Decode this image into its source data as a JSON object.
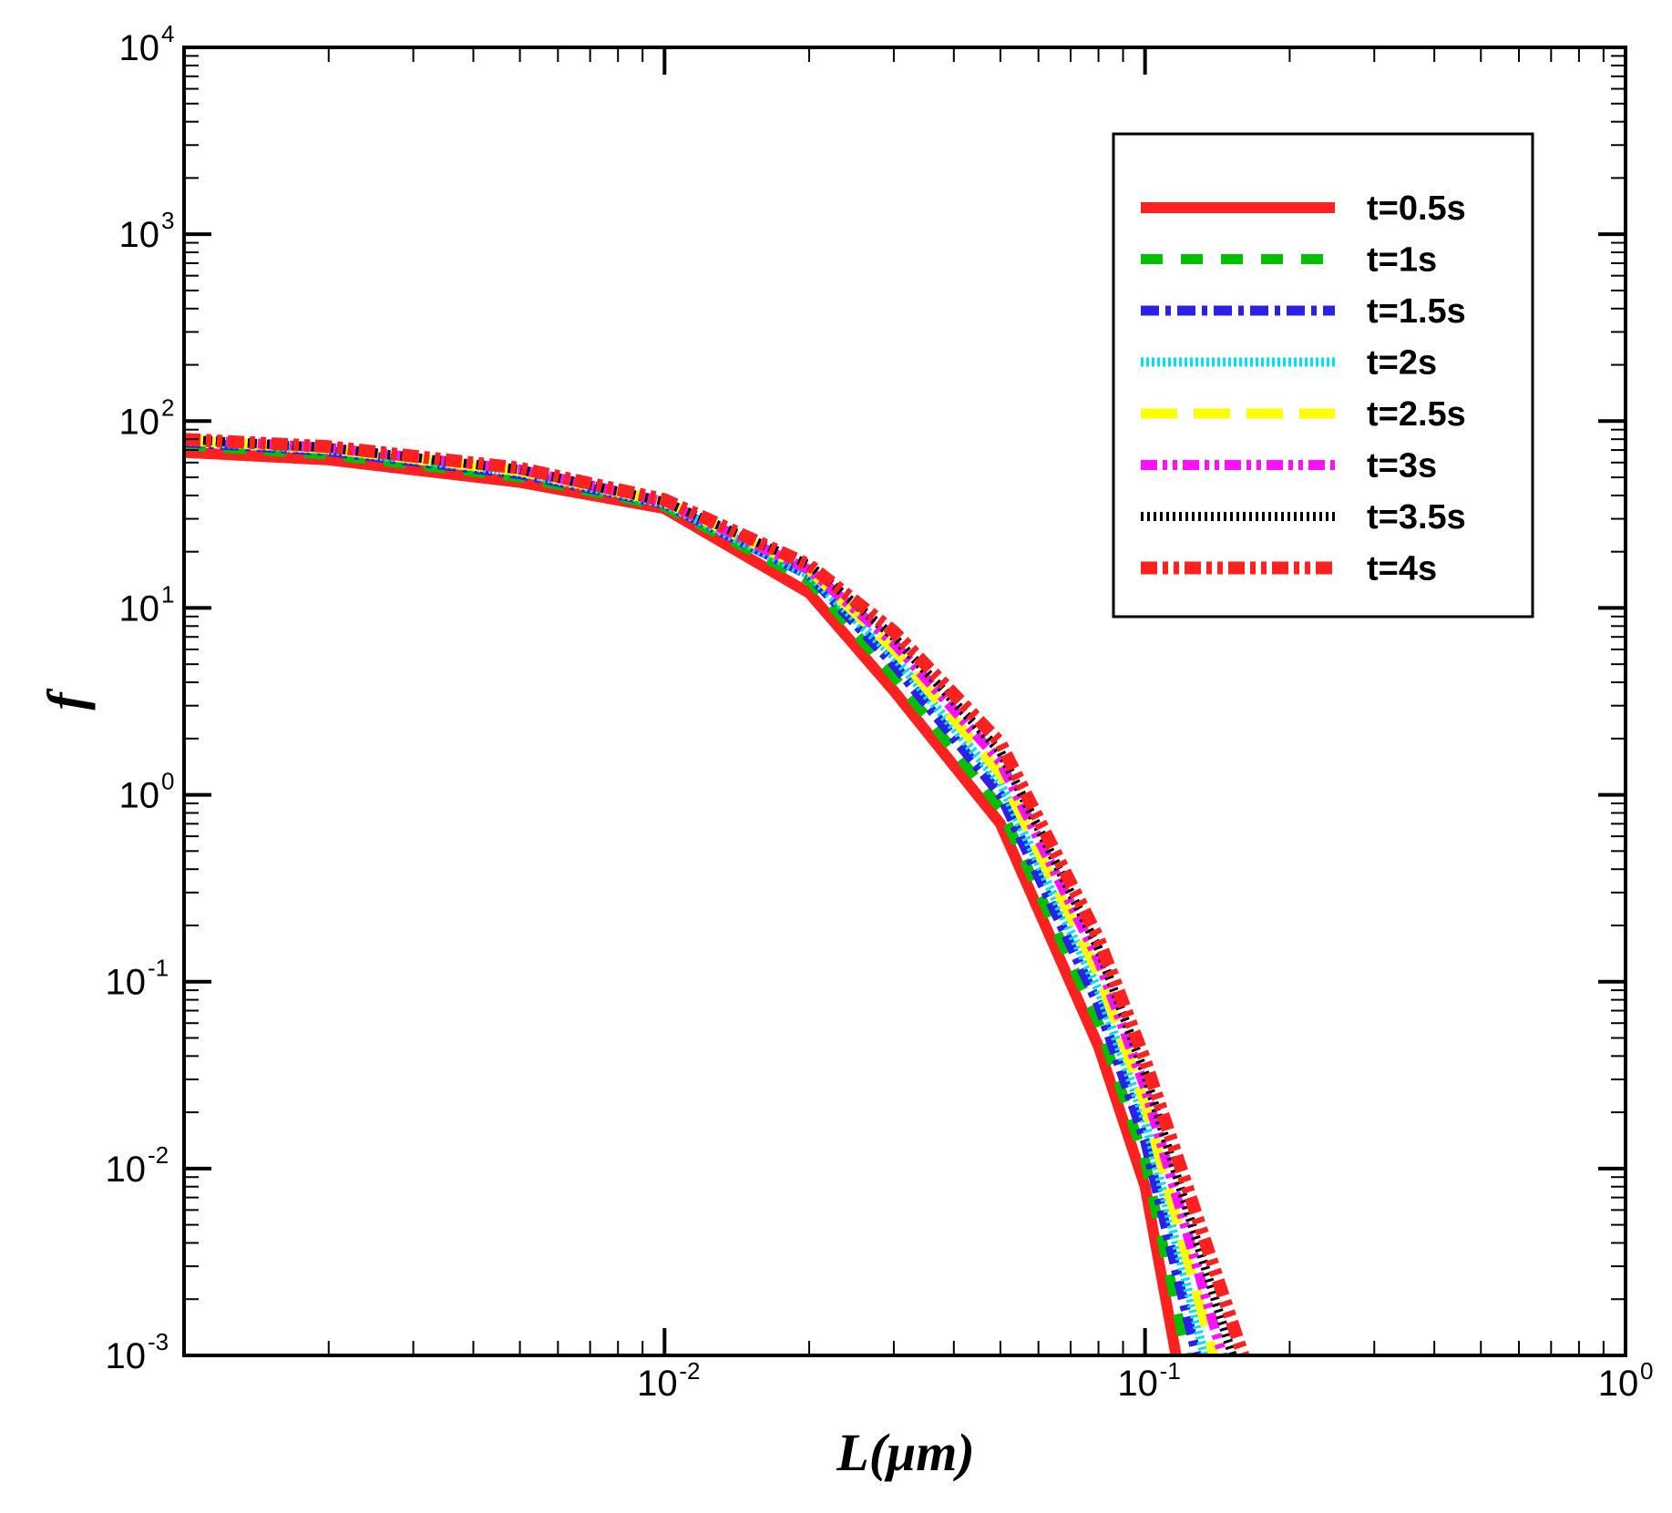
{
  "chart_data": {
    "type": "line",
    "title": "",
    "xlabel": "L(μm)",
    "ylabel": "f",
    "xscale": "log",
    "yscale": "log",
    "xlim": [
      0.001,
      1
    ],
    "ylim": [
      0.001,
      10000
    ],
    "grid": false,
    "legend_position": "top-right",
    "x_ticks": [
      {
        "value": 0.01,
        "base": "10",
        "exp": "-2"
      },
      {
        "value": 0.1,
        "base": "10",
        "exp": "-1"
      },
      {
        "value": 1,
        "base": "10",
        "exp": "0"
      }
    ],
    "y_ticks": [
      {
        "value": 0.001,
        "base": "10",
        "exp": "-3"
      },
      {
        "value": 0.01,
        "base": "10",
        "exp": "-2"
      },
      {
        "value": 0.1,
        "base": "10",
        "exp": "-1"
      },
      {
        "value": 1,
        "base": "10",
        "exp": "0"
      },
      {
        "value": 10,
        "base": "10",
        "exp": "1"
      },
      {
        "value": 100,
        "base": "10",
        "exp": "2"
      },
      {
        "value": 1000,
        "base": "10",
        "exp": "3"
      },
      {
        "value": 10000,
        "base": "10",
        "exp": "4"
      }
    ],
    "series": [
      {
        "name": "t=0.5s",
        "color": "#ff2020",
        "style": "solid",
        "x": [
          0.001,
          0.002,
          0.005,
          0.01,
          0.02,
          0.03,
          0.05,
          0.08,
          0.1,
          0.116
        ],
        "y": [
          68,
          62,
          47,
          34,
          12,
          3.6,
          0.7,
          0.045,
          0.008,
          0.001
        ]
      },
      {
        "name": "t=1s",
        "color": "#00c000",
        "style": "dash",
        "x": [
          0.001,
          0.002,
          0.005,
          0.01,
          0.02,
          0.03,
          0.05,
          0.08,
          0.1,
          0.122
        ],
        "y": [
          74,
          66,
          50,
          35,
          14,
          4.3,
          0.85,
          0.06,
          0.011,
          0.001
        ]
      },
      {
        "name": "t=1.5s",
        "color": "#2a20e8",
        "style": "dashdot",
        "x": [
          0.001,
          0.002,
          0.005,
          0.01,
          0.02,
          0.03,
          0.05,
          0.08,
          0.1,
          0.128
        ],
        "y": [
          77,
          69,
          52,
          36,
          15,
          5.0,
          1.0,
          0.075,
          0.014,
          0.001
        ]
      },
      {
        "name": "t=2s",
        "color": "#00e0f0",
        "style": "dot",
        "x": [
          0.001,
          0.002,
          0.005,
          0.01,
          0.02,
          0.03,
          0.05,
          0.08,
          0.1,
          0.133
        ],
        "y": [
          78,
          70,
          53,
          36,
          15,
          5.5,
          1.15,
          0.09,
          0.018,
          0.001
        ]
      },
      {
        "name": "t=2.5s",
        "color": "#ffff00",
        "style": "longdash",
        "x": [
          0.001,
          0.002,
          0.005,
          0.01,
          0.02,
          0.03,
          0.05,
          0.08,
          0.1,
          0.139
        ],
        "y": [
          79,
          71,
          54,
          37,
          16,
          6.0,
          1.3,
          0.11,
          0.022,
          0.001
        ]
      },
      {
        "name": "t=3s",
        "color": "#ff10ff",
        "style": "dashdotdot",
        "x": [
          0.001,
          0.002,
          0.005,
          0.01,
          0.02,
          0.03,
          0.05,
          0.08,
          0.1,
          0.145
        ],
        "y": [
          80,
          72,
          55,
          37,
          16,
          6.5,
          1.5,
          0.13,
          0.027,
          0.001
        ]
      },
      {
        "name": "t=3.5s",
        "color": "#000000",
        "style": "densedot",
        "x": [
          0.001,
          0.002,
          0.005,
          0.01,
          0.02,
          0.03,
          0.05,
          0.08,
          0.1,
          0.152
        ],
        "y": [
          80,
          72,
          55,
          37,
          17,
          7.0,
          1.7,
          0.15,
          0.032,
          0.001
        ]
      },
      {
        "name": "t=4s",
        "color": "#ff2020",
        "style": "thickdashdotdot",
        "x": [
          0.001,
          0.002,
          0.005,
          0.01,
          0.02,
          0.03,
          0.05,
          0.08,
          0.1,
          0.16
        ],
        "y": [
          80,
          73,
          56,
          38,
          17,
          7.5,
          1.9,
          0.17,
          0.038,
          0.001
        ]
      }
    ]
  }
}
